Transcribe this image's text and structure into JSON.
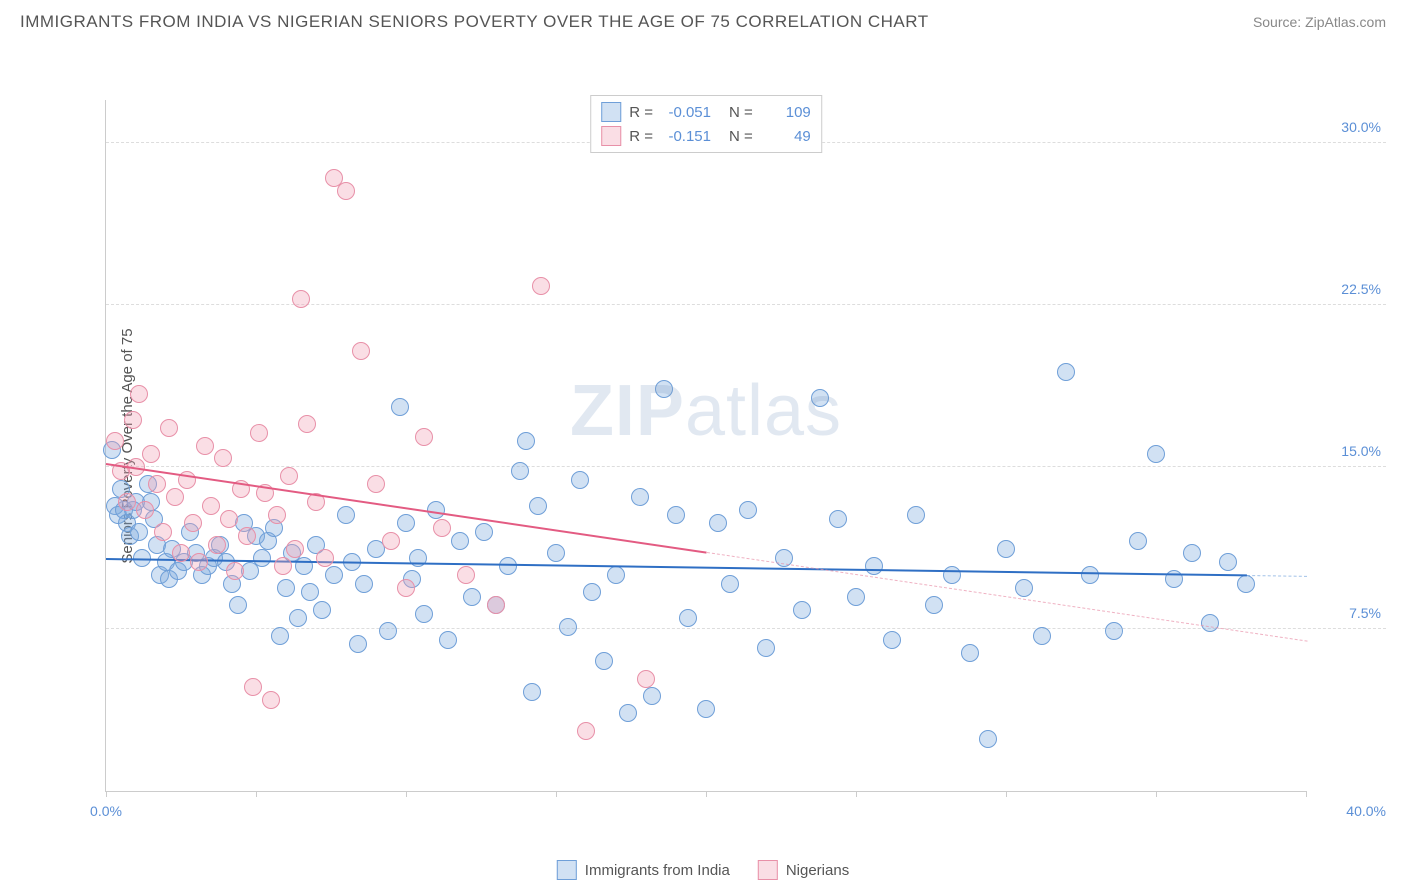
{
  "title": "IMMIGRANTS FROM INDIA VS NIGERIAN SENIORS POVERTY OVER THE AGE OF 75 CORRELATION CHART",
  "source_label": "Source: ",
  "source_name": "ZipAtlas.com",
  "ylabel": "Seniors Poverty Over the Age of 75",
  "watermark_bold": "ZIP",
  "watermark_rest": "atlas",
  "chart": {
    "type": "scatter",
    "background_color": "#ffffff",
    "grid_color": "#dddddd",
    "axis_color": "#cccccc",
    "tick_label_color": "#5b8fd6",
    "label_color": "#555555",
    "title_fontsize": 17,
    "label_fontsize": 15,
    "tick_fontsize": 14,
    "xlim": [
      0,
      40
    ],
    "ylim": [
      0,
      32
    ],
    "y_gridlines": [
      7.5,
      15.0,
      22.5,
      30.0
    ],
    "ytick_labels": [
      "7.5%",
      "15.0%",
      "22.5%",
      "30.0%"
    ],
    "x_ticks": [
      0,
      5,
      10,
      15,
      20,
      25,
      30,
      35,
      40
    ],
    "x_min_label": "0.0%",
    "x_max_label": "40.0%",
    "marker_radius": 9,
    "marker_stroke_width": 1.5,
    "trend_line_width": 2
  },
  "series": [
    {
      "name": "Immigrants from India",
      "fill_color": "rgba(123, 168, 222, 0.35)",
      "stroke_color": "#6f9fd8",
      "trend_color": "#2f6fc4",
      "trend_dash_color": "rgba(123, 168, 222, 0.7)",
      "R_label": "R = ",
      "R": "-0.051",
      "N_label": "N = ",
      "N": "109",
      "trend": {
        "x1": 0,
        "y1": 10.8,
        "x2": 40,
        "y2": 10.0,
        "solid_to_x": 38
      },
      "points": [
        [
          0.2,
          15.8
        ],
        [
          0.3,
          13.2
        ],
        [
          0.4,
          12.8
        ],
        [
          0.5,
          14.0
        ],
        [
          0.6,
          13.0
        ],
        [
          0.7,
          12.4
        ],
        [
          0.8,
          11.8
        ],
        [
          0.9,
          13.0
        ],
        [
          1.0,
          13.4
        ],
        [
          1.1,
          12.0
        ],
        [
          1.2,
          10.8
        ],
        [
          1.4,
          14.2
        ],
        [
          1.5,
          13.4
        ],
        [
          1.6,
          12.6
        ],
        [
          1.7,
          11.4
        ],
        [
          1.8,
          10.0
        ],
        [
          2.0,
          10.6
        ],
        [
          2.1,
          9.8
        ],
        [
          2.2,
          11.2
        ],
        [
          2.4,
          10.2
        ],
        [
          2.6,
          10.6
        ],
        [
          2.8,
          12.0
        ],
        [
          3.0,
          11.0
        ],
        [
          3.2,
          10.0
        ],
        [
          3.4,
          10.4
        ],
        [
          3.6,
          10.8
        ],
        [
          3.8,
          11.4
        ],
        [
          4.0,
          10.6
        ],
        [
          4.2,
          9.6
        ],
        [
          4.4,
          8.6
        ],
        [
          4.6,
          12.4
        ],
        [
          4.8,
          10.2
        ],
        [
          5.0,
          11.8
        ],
        [
          5.2,
          10.8
        ],
        [
          5.4,
          11.6
        ],
        [
          5.6,
          12.2
        ],
        [
          5.8,
          7.2
        ],
        [
          6.0,
          9.4
        ],
        [
          6.2,
          11.0
        ],
        [
          6.4,
          8.0
        ],
        [
          6.6,
          10.4
        ],
        [
          6.8,
          9.2
        ],
        [
          7.0,
          11.4
        ],
        [
          7.2,
          8.4
        ],
        [
          7.6,
          10.0
        ],
        [
          8.0,
          12.8
        ],
        [
          8.2,
          10.6
        ],
        [
          8.4,
          6.8
        ],
        [
          8.6,
          9.6
        ],
        [
          9.0,
          11.2
        ],
        [
          9.4,
          7.4
        ],
        [
          9.8,
          17.8
        ],
        [
          10.0,
          12.4
        ],
        [
          10.2,
          9.8
        ],
        [
          10.4,
          10.8
        ],
        [
          10.6,
          8.2
        ],
        [
          11.0,
          13.0
        ],
        [
          11.4,
          7.0
        ],
        [
          11.8,
          11.6
        ],
        [
          12.2,
          9.0
        ],
        [
          12.6,
          12.0
        ],
        [
          13.0,
          8.6
        ],
        [
          13.4,
          10.4
        ],
        [
          13.8,
          14.8
        ],
        [
          14.0,
          16.2
        ],
        [
          14.2,
          4.6
        ],
        [
          14.4,
          13.2
        ],
        [
          15.0,
          11.0
        ],
        [
          15.4,
          7.6
        ],
        [
          15.8,
          14.4
        ],
        [
          16.2,
          9.2
        ],
        [
          16.6,
          6.0
        ],
        [
          17.0,
          10.0
        ],
        [
          17.4,
          3.6
        ],
        [
          17.8,
          13.6
        ],
        [
          18.2,
          4.4
        ],
        [
          18.6,
          18.6
        ],
        [
          19.0,
          12.8
        ],
        [
          19.4,
          8.0
        ],
        [
          20.0,
          3.8
        ],
        [
          20.4,
          12.4
        ],
        [
          20.8,
          9.6
        ],
        [
          21.4,
          13.0
        ],
        [
          22.0,
          6.6
        ],
        [
          22.6,
          10.8
        ],
        [
          23.2,
          8.4
        ],
        [
          23.8,
          18.2
        ],
        [
          24.4,
          12.6
        ],
        [
          25.0,
          9.0
        ],
        [
          25.6,
          10.4
        ],
        [
          26.2,
          7.0
        ],
        [
          27.0,
          12.8
        ],
        [
          27.6,
          8.6
        ],
        [
          28.2,
          10.0
        ],
        [
          28.8,
          6.4
        ],
        [
          29.4,
          2.4
        ],
        [
          30.0,
          11.2
        ],
        [
          30.6,
          9.4
        ],
        [
          31.2,
          7.2
        ],
        [
          32.0,
          19.4
        ],
        [
          32.8,
          10.0
        ],
        [
          33.6,
          7.4
        ],
        [
          34.4,
          11.6
        ],
        [
          35.0,
          15.6
        ],
        [
          35.6,
          9.8
        ],
        [
          36.2,
          11.0
        ],
        [
          36.8,
          7.8
        ],
        [
          37.4,
          10.6
        ],
        [
          38.0,
          9.6
        ]
      ]
    },
    {
      "name": "Nigerians",
      "fill_color": "rgba(240, 160, 180, 0.35)",
      "stroke_color": "#e890a8",
      "trend_color": "#e35b82",
      "trend_dash_color": "rgba(232, 144, 168, 0.7)",
      "R_label": "R = ",
      "R": "-0.151",
      "N_label": "N = ",
      "N": "49",
      "trend": {
        "x1": 0,
        "y1": 15.2,
        "x2": 40,
        "y2": 7.0,
        "solid_to_x": 20
      },
      "points": [
        [
          0.3,
          16.2
        ],
        [
          0.5,
          14.8
        ],
        [
          0.7,
          13.4
        ],
        [
          0.9,
          17.2
        ],
        [
          1.0,
          15.0
        ],
        [
          1.1,
          18.4
        ],
        [
          1.3,
          13.0
        ],
        [
          1.5,
          15.6
        ],
        [
          1.7,
          14.2
        ],
        [
          1.9,
          12.0
        ],
        [
          2.1,
          16.8
        ],
        [
          2.3,
          13.6
        ],
        [
          2.5,
          11.0
        ],
        [
          2.7,
          14.4
        ],
        [
          2.9,
          12.4
        ],
        [
          3.1,
          10.6
        ],
        [
          3.3,
          16.0
        ],
        [
          3.5,
          13.2
        ],
        [
          3.7,
          11.4
        ],
        [
          3.9,
          15.4
        ],
        [
          4.1,
          12.6
        ],
        [
          4.3,
          10.2
        ],
        [
          4.5,
          14.0
        ],
        [
          4.7,
          11.8
        ],
        [
          4.9,
          4.8
        ],
        [
          5.1,
          16.6
        ],
        [
          5.3,
          13.8
        ],
        [
          5.5,
          4.2
        ],
        [
          5.7,
          12.8
        ],
        [
          5.9,
          10.4
        ],
        [
          6.1,
          14.6
        ],
        [
          6.3,
          11.2
        ],
        [
          6.5,
          22.8
        ],
        [
          6.7,
          17.0
        ],
        [
          7.0,
          13.4
        ],
        [
          7.3,
          10.8
        ],
        [
          7.6,
          28.4
        ],
        [
          8.0,
          27.8
        ],
        [
          8.5,
          20.4
        ],
        [
          9.0,
          14.2
        ],
        [
          9.5,
          11.6
        ],
        [
          10.0,
          9.4
        ],
        [
          10.6,
          16.4
        ],
        [
          11.2,
          12.2
        ],
        [
          12.0,
          10.0
        ],
        [
          13.0,
          8.6
        ],
        [
          14.5,
          23.4
        ],
        [
          16.0,
          2.8
        ],
        [
          18.0,
          5.2
        ]
      ]
    }
  ],
  "bottom_legend": [
    {
      "label": "Immigrants from India",
      "fill": "rgba(123, 168, 222, 0.35)",
      "stroke": "#6f9fd8"
    },
    {
      "label": "Nigerians",
      "fill": "rgba(240, 160, 180, 0.35)",
      "stroke": "#e890a8"
    }
  ]
}
